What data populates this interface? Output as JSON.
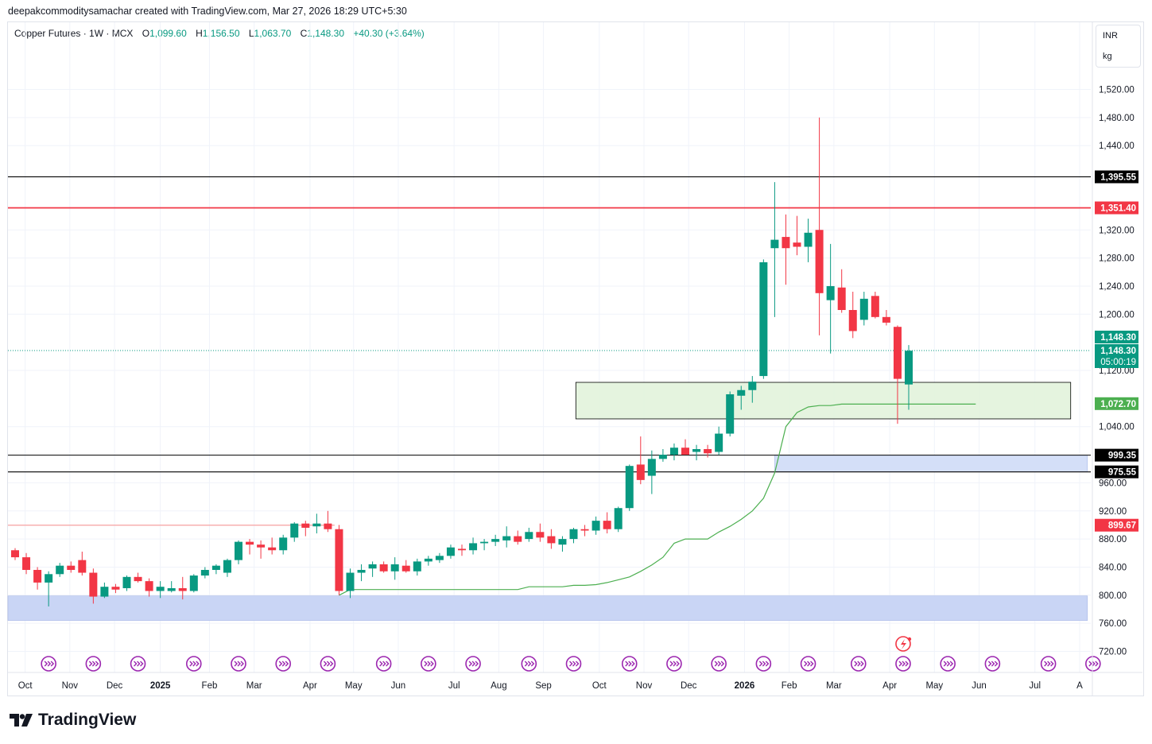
{
  "credit": "deepakcommoditysamachar created with TradingView.com, Mar 27, 2026 18:29 UTC+5:30",
  "legend": {
    "symbol": "Copper Futures · 1W · MCX",
    "o_label": "O",
    "o": "1,099.60",
    "h_label": "H",
    "h": "1,156.50",
    "l_label": "L",
    "l": "1,063.70",
    "c_label": "C",
    "c": "1,148.30",
    "change": "+40.30 (+3.64%)"
  },
  "units": {
    "currency": "INR",
    "unit": "kg"
  },
  "footer": {
    "brand": "TradingView"
  },
  "colors": {
    "up": "#089981",
    "down": "#f23645",
    "red_line": "#f23645",
    "ma": "#4caf50",
    "zone_blue": "#c9d5f5",
    "zone_green": "#dff2d8"
  },
  "chart_data": {
    "type": "candlestick",
    "timeframe": "1W",
    "y_ticks": [
      720,
      760,
      800,
      840,
      880,
      920,
      960,
      1040,
      1120,
      1200,
      1240,
      1280,
      1320,
      1440,
      1480,
      1520
    ],
    "y_tick_labels": [
      "720.00",
      "760.00",
      "800.00",
      "840.00",
      "880.00",
      "920.00",
      "960.00",
      "1,040.00",
      "1,120.00",
      "1,200.00",
      "1,240.00",
      "1,280.00",
      "1,320.00",
      "1,440.00",
      "1,480.00",
      "1,520.00"
    ],
    "x_labels": [
      {
        "label": "Oct",
        "week": 0.9,
        "bold": false
      },
      {
        "label": "Nov",
        "week": 4.9,
        "bold": false
      },
      {
        "label": "Dec",
        "week": 8.9,
        "bold": false
      },
      {
        "label": "2025",
        "week": 13.0,
        "bold": true
      },
      {
        "label": "Feb",
        "week": 17.4,
        "bold": false
      },
      {
        "label": "Mar",
        "week": 21.4,
        "bold": false
      },
      {
        "label": "Apr",
        "week": 26.4,
        "bold": false
      },
      {
        "label": "May",
        "week": 30.3,
        "bold": false
      },
      {
        "label": "Jun",
        "week": 34.3,
        "bold": false
      },
      {
        "label": "Jul",
        "week": 39.3,
        "bold": false
      },
      {
        "label": "Aug",
        "week": 43.3,
        "bold": false
      },
      {
        "label": "Sep",
        "week": 47.3,
        "bold": false
      },
      {
        "label": "Oct",
        "week": 52.3,
        "bold": false
      },
      {
        "label": "Nov",
        "week": 56.3,
        "bold": false
      },
      {
        "label": "Dec",
        "week": 60.3,
        "bold": false
      },
      {
        "label": "2026",
        "week": 65.3,
        "bold": true
      },
      {
        "label": "Feb",
        "week": 69.3,
        "bold": false
      },
      {
        "label": "Mar",
        "week": 73.3,
        "bold": false
      },
      {
        "label": "Apr",
        "week": 78.3,
        "bold": false
      },
      {
        "label": "May",
        "week": 82.3,
        "bold": false
      },
      {
        "label": "Jun",
        "week": 86.3,
        "bold": false
      },
      {
        "label": "Jul",
        "week": 91.3,
        "bold": false
      },
      {
        "label": "A",
        "week": 95.3,
        "bold": false
      }
    ],
    "candles": [
      [
        864,
        867,
        850,
        854
      ],
      [
        854,
        860,
        830,
        836
      ],
      [
        836,
        840,
        808,
        818
      ],
      [
        818,
        834,
        784,
        830
      ],
      [
        830,
        846,
        826,
        842
      ],
      [
        842,
        848,
        832,
        836
      ],
      [
        850,
        862,
        828,
        832
      ],
      [
        832,
        838,
        788,
        798
      ],
      [
        798,
        818,
        796,
        812
      ],
      [
        812,
        816,
        803,
        808
      ],
      [
        810,
        828,
        806,
        826
      ],
      [
        826,
        832,
        818,
        820
      ],
      [
        820,
        824,
        798,
        806
      ],
      [
        806,
        820,
        796,
        812
      ],
      [
        806,
        820,
        804,
        810
      ],
      [
        810,
        826,
        794,
        806
      ],
      [
        806,
        830,
        804,
        828
      ],
      [
        828,
        840,
        824,
        836
      ],
      [
        836,
        844,
        830,
        842
      ],
      [
        832,
        852,
        826,
        850
      ],
      [
        850,
        878,
        844,
        876
      ],
      [
        876,
        880,
        858,
        872
      ],
      [
        872,
        878,
        852,
        868
      ],
      [
        868,
        882,
        858,
        864
      ],
      [
        864,
        886,
        858,
        882
      ],
      [
        882,
        904,
        876,
        902
      ],
      [
        902,
        906,
        884,
        896
      ],
      [
        898,
        916,
        888,
        902
      ],
      [
        902,
        920,
        890,
        894
      ],
      [
        894,
        900,
        800,
        806
      ],
      [
        806,
        838,
        796,
        832
      ],
      [
        832,
        844,
        820,
        836
      ],
      [
        838,
        848,
        826,
        844
      ],
      [
        844,
        848,
        832,
        834
      ],
      [
        834,
        854,
        822,
        844
      ],
      [
        842,
        850,
        832,
        834
      ],
      [
        834,
        852,
        828,
        848
      ],
      [
        848,
        856,
        842,
        852
      ],
      [
        850,
        860,
        846,
        856
      ],
      [
        856,
        872,
        852,
        868
      ],
      [
        866,
        872,
        856,
        864
      ],
      [
        864,
        882,
        858,
        874
      ],
      [
        874,
        880,
        864,
        876
      ],
      [
        876,
        886,
        870,
        880
      ],
      [
        878,
        898,
        868,
        884
      ],
      [
        884,
        892,
        872,
        876
      ],
      [
        880,
        896,
        876,
        890
      ],
      [
        890,
        902,
        876,
        882
      ],
      [
        884,
        894,
        866,
        874
      ],
      [
        872,
        884,
        862,
        880
      ],
      [
        880,
        896,
        874,
        894
      ],
      [
        894,
        900,
        884,
        892
      ],
      [
        892,
        912,
        886,
        906
      ],
      [
        906,
        918,
        888,
        894
      ],
      [
        894,
        926,
        890,
        924
      ],
      [
        924,
        986,
        920,
        984
      ],
      [
        986,
        1026,
        958,
        964
      ],
      [
        970,
        1006,
        944,
        994
      ],
      [
        994,
        1008,
        990,
        1000
      ],
      [
        1000,
        1016,
        992,
        1010
      ],
      [
        1010,
        1022,
        1000,
        1000
      ],
      [
        1004,
        1014,
        992,
        1008
      ],
      [
        1008,
        1014,
        996,
        1002
      ],
      [
        1004,
        1040,
        1000,
        1030
      ],
      [
        1030,
        1090,
        1026,
        1086
      ],
      [
        1084,
        1098,
        1064,
        1092
      ],
      [
        1092,
        1112,
        1074,
        1104
      ],
      [
        1112,
        1278,
        1108,
        1274
      ],
      [
        1294,
        1388,
        1196,
        1306
      ],
      [
        1310,
        1342,
        1242,
        1294
      ],
      [
        1302,
        1340,
        1284,
        1296
      ],
      [
        1296,
        1336,
        1274,
        1316
      ],
      [
        1320,
        1480,
        1170,
        1230
      ],
      [
        1220,
        1300,
        1144,
        1240
      ],
      [
        1238,
        1264,
        1202,
        1206
      ],
      [
        1206,
        1232,
        1166,
        1176
      ],
      [
        1192,
        1232,
        1184,
        1222
      ],
      [
        1226,
        1232,
        1194,
        1196
      ],
      [
        1196,
        1206,
        1184,
        1188
      ],
      [
        1182,
        1184,
        1044,
        1108
      ],
      [
        1100,
        1156,
        1064,
        1148
      ]
    ],
    "moving_average": [
      [
        29,
        800
      ],
      [
        30,
        808
      ],
      [
        35,
        808
      ],
      [
        40,
        808
      ],
      [
        45,
        808
      ],
      [
        46,
        812
      ],
      [
        49,
        812
      ],
      [
        50,
        814
      ],
      [
        51,
        814
      ],
      [
        52,
        815
      ],
      [
        53,
        818
      ],
      [
        54,
        822
      ],
      [
        55,
        826
      ],
      [
        56,
        834
      ],
      [
        57,
        843
      ],
      [
        58,
        854
      ],
      [
        59,
        874
      ],
      [
        60,
        880
      ],
      [
        61,
        880
      ],
      [
        62,
        880
      ],
      [
        63,
        890
      ],
      [
        64,
        898
      ],
      [
        65,
        908
      ],
      [
        66,
        920
      ],
      [
        67,
        938
      ],
      [
        68,
        974
      ],
      [
        69,
        1040
      ],
      [
        70,
        1060
      ],
      [
        71,
        1068
      ],
      [
        72,
        1070
      ],
      [
        73,
        1070
      ],
      [
        74,
        1072
      ],
      [
        75,
        1072
      ],
      [
        76,
        1072
      ],
      [
        80,
        1072
      ],
      [
        85,
        1072
      ],
      [
        86,
        1072
      ]
    ],
    "horizontal_lines": [
      {
        "price": 1395.55,
        "label": "1,395.55",
        "color": "#000000"
      },
      {
        "price": 1351.4,
        "label": "1,351.40",
        "color": "#f23645"
      },
      {
        "price": 999.35,
        "label": "999.35",
        "color": "#000000"
      },
      {
        "price": 975.55,
        "label": "975.55",
        "color": "#000000"
      }
    ],
    "pink_line": {
      "price": 899.67,
      "label": "899.67",
      "end_week": 28.6
    },
    "ma_label": {
      "price": 1072.7,
      "label": "1,072.70"
    },
    "last_price": {
      "price": 1148.3,
      "label": "1,148.30",
      "countdown": "05:00:19"
    },
    "zones": [
      {
        "from_price": 799,
        "to_price": 764,
        "color": "#c9d5f5",
        "from_week": -1,
        "to_week": 96
      },
      {
        "from_price": 999.35,
        "to_price": 975.55,
        "color": "#d4dff8",
        "from_week": 68,
        "to_week": 96
      },
      {
        "from_price": 1103,
        "to_price": 1051,
        "color": "#e2f3dc",
        "from_week": 50.2,
        "to_week": 94.5
      }
    ],
    "event_markers_weeks": [
      3,
      7,
      11,
      16,
      20,
      24,
      28,
      33,
      37,
      41,
      46,
      50,
      55,
      59,
      63,
      67,
      71,
      75.5,
      79.5,
      83.5,
      87.5,
      92.5,
      96.5
    ],
    "special_marker_week": 79.5
  }
}
